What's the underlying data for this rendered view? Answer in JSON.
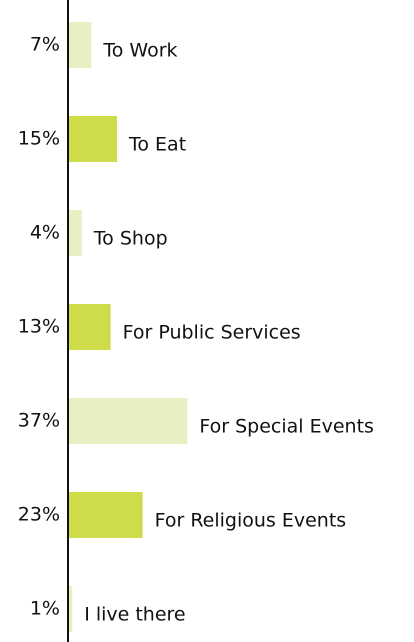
{
  "chart_data": {
    "type": "hbar",
    "categories": [
      "To Work",
      "To Eat",
      "To Shop",
      "For Public Services",
      "For Special Events",
      "For Religious Events",
      "I live there"
    ],
    "values": [
      7,
      15,
      4,
      13,
      37,
      23,
      1
    ],
    "value_labels": [
      "7%",
      "15%",
      "4%",
      "13%",
      "37%",
      "23%",
      "1%"
    ],
    "colors": [
      "#e6f0c2",
      "#cddc48",
      "#e6f0c2",
      "#cddc48",
      "#e6f0c2",
      "#cddc48",
      "#e6f0c2"
    ]
  }
}
